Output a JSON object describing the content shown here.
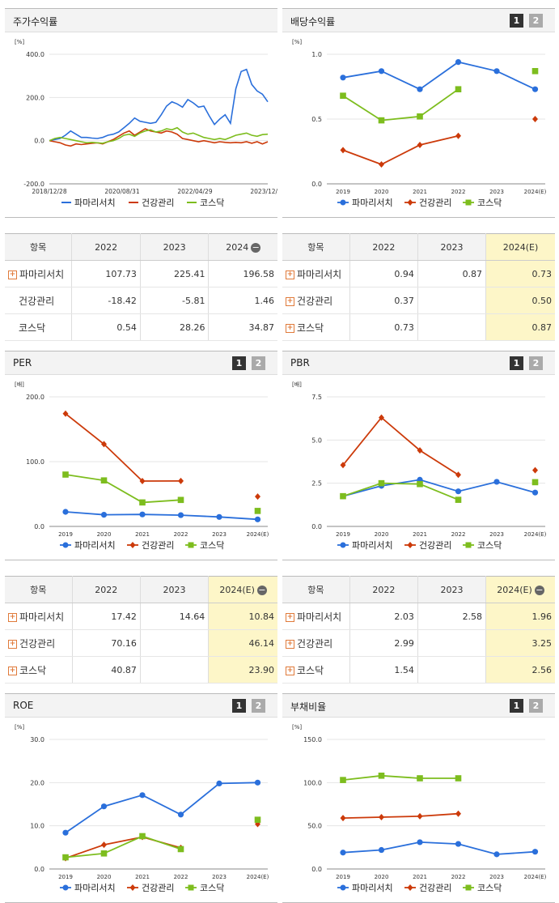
{
  "colors": {
    "s1": "#2a6fdb",
    "s2": "#cc3a0a",
    "s3": "#7dbd1e"
  },
  "pager": {
    "p1": "1",
    "p2": "2"
  },
  "top": {
    "btn_right_text": "1"
  },
  "chart_data": [
    {
      "id": "stock",
      "type": "line",
      "title": "주가수익률",
      "unit": "[%]",
      "ylim": [
        -200,
        400
      ],
      "yticks": [
        "400.0",
        "200.0",
        "0.0",
        "-200.0"
      ],
      "xticks": [
        "2018/12/28",
        "2020/08/31",
        "2022/04/29",
        "2023/12/28"
      ],
      "series": [
        {
          "name": "파마리서치",
          "values": [
            0,
            5,
            10,
            25,
            45,
            30,
            15,
            15,
            12,
            10,
            15,
            25,
            30,
            40,
            60,
            80,
            105,
            90,
            85,
            80,
            85,
            120,
            160,
            180,
            170,
            155,
            190,
            175,
            155,
            160,
            115,
            75,
            100,
            120,
            80,
            240,
            320,
            330,
            260,
            230,
            215,
            180
          ]
        },
        {
          "name": "건강관리",
          "values": [
            0,
            -5,
            -10,
            -20,
            -25,
            -15,
            -18,
            -15,
            -12,
            -10,
            -15,
            -5,
            5,
            20,
            35,
            45,
            25,
            40,
            55,
            45,
            40,
            35,
            45,
            40,
            30,
            10,
            5,
            0,
            -5,
            0,
            -5,
            -10,
            -5,
            -8,
            -10,
            -8,
            -10,
            -5,
            -12,
            -5,
            -15,
            -5
          ]
        },
        {
          "name": "코스닥",
          "values": [
            0,
            10,
            15,
            10,
            5,
            0,
            -5,
            -10,
            -8,
            -10,
            -12,
            -5,
            0,
            10,
            25,
            30,
            20,
            35,
            45,
            50,
            40,
            45,
            55,
            50,
            60,
            40,
            30,
            35,
            25,
            15,
            10,
            5,
            10,
            5,
            15,
            25,
            30,
            35,
            25,
            20,
            28,
            30
          ]
        }
      ]
    },
    {
      "id": "dividend",
      "type": "line",
      "title": "배당수익률",
      "unit": "[%]",
      "ylim": [
        0,
        1
      ],
      "yticks": [
        "1.0",
        "0.5",
        "0.0"
      ],
      "categories": [
        "2019",
        "2020",
        "2021",
        "2022",
        "2023",
        "2024(E)"
      ],
      "series": [
        {
          "name": "파마리서치",
          "values": [
            0.82,
            0.87,
            0.73,
            0.94,
            0.87,
            0.73
          ]
        },
        {
          "name": "건강관리",
          "values": [
            0.26,
            0.15,
            0.3,
            0.37,
            null,
            0.5
          ]
        },
        {
          "name": "코스닥",
          "values": [
            0.68,
            0.49,
            0.52,
            0.73,
            null,
            0.87
          ]
        }
      ]
    },
    {
      "id": "per",
      "type": "line",
      "title": "PER",
      "unit": "[배]",
      "ylim": [
        0,
        200
      ],
      "yticks": [
        "200.0",
        "100.0",
        "0.0"
      ],
      "categories": [
        "2019",
        "2020",
        "2021",
        "2022",
        "2023",
        "2024(E)"
      ],
      "series": [
        {
          "name": "파마리서치",
          "values": [
            22.5,
            18.0,
            18.5,
            17.42,
            14.64,
            10.84
          ]
        },
        {
          "name": "건강관리",
          "values": [
            174,
            127,
            70,
            70.16,
            null,
            46.14
          ]
        },
        {
          "name": "코스닥",
          "values": [
            80,
            71,
            37,
            40.87,
            null,
            23.9
          ]
        }
      ]
    },
    {
      "id": "pbr",
      "type": "line",
      "title": "PBR",
      "unit": "[배]",
      "ylim": [
        0,
        7.5
      ],
      "yticks": [
        "7.5",
        "5.0",
        "2.5",
        "0.0"
      ],
      "categories": [
        "2019",
        "2020",
        "2021",
        "2022",
        "2023",
        "2024(E)"
      ],
      "series": [
        {
          "name": "파마리서치",
          "values": [
            1.75,
            2.35,
            2.7,
            2.03,
            2.58,
            1.96
          ]
        },
        {
          "name": "건강관리",
          "values": [
            3.55,
            6.3,
            4.4,
            2.99,
            null,
            3.25
          ]
        },
        {
          "name": "코스닥",
          "values": [
            1.75,
            2.5,
            2.45,
            1.54,
            null,
            2.56
          ]
        }
      ]
    },
    {
      "id": "roe",
      "type": "line",
      "title": "ROE",
      "unit": "[%]",
      "ylim": [
        0,
        30
      ],
      "yticks": [
        "30.0",
        "20.0",
        "10.0",
        "0.0"
      ],
      "categories": [
        "2019",
        "2020",
        "2021",
        "2022",
        "2023",
        "2024(E)"
      ],
      "series": [
        {
          "name": "파마리서치",
          "values": [
            8.4,
            14.5,
            17.1,
            12.6,
            19.8,
            20.0
          ]
        },
        {
          "name": "건강관리",
          "values": [
            2.5,
            5.6,
            7.4,
            4.9,
            null,
            10.4
          ]
        },
        {
          "name": "코스닥",
          "values": [
            2.7,
            3.6,
            7.6,
            4.6,
            null,
            11.4
          ]
        }
      ]
    },
    {
      "id": "debt",
      "type": "line",
      "title": "부채비율",
      "unit": "[%]",
      "ylim": [
        0,
        150
      ],
      "yticks": [
        "150.0",
        "100.0",
        "50.0",
        "0.0"
      ],
      "categories": [
        "2019",
        "2020",
        "2021",
        "2022",
        "2023",
        "2024(E)"
      ],
      "series": [
        {
          "name": "파마리서치",
          "values": [
            19,
            22,
            31,
            29,
            17,
            20
          ]
        },
        {
          "name": "건강관리",
          "values": [
            59,
            60,
            61,
            64,
            null,
            null
          ]
        },
        {
          "name": "코스닥",
          "values": [
            103,
            108,
            105,
            105,
            null,
            null
          ]
        }
      ]
    }
  ],
  "tables": {
    "stock": {
      "head": [
        "항목",
        "2022",
        "2023",
        "2024"
      ],
      "rows": [
        {
          "label": "파마리서치",
          "plus": true,
          "v": [
            "107.73",
            "225.41",
            "196.58"
          ]
        },
        {
          "label": "건강관리",
          "plus": false,
          "v": [
            "-18.42",
            "-5.81",
            "1.46"
          ]
        },
        {
          "label": "코스닥",
          "plus": false,
          "v": [
            "0.54",
            "28.26",
            "34.87"
          ]
        }
      ]
    },
    "dividend": {
      "head": [
        "항목",
        "2022",
        "2023",
        "2024(E)"
      ],
      "rows": [
        {
          "label": "파마리서치",
          "plus": true,
          "v": [
            "0.94",
            "0.87",
            "0.73"
          ]
        },
        {
          "label": "건강관리",
          "plus": true,
          "v": [
            "0.37",
            "",
            "0.50"
          ]
        },
        {
          "label": "코스닥",
          "plus": true,
          "v": [
            "0.73",
            "",
            "0.87"
          ]
        }
      ]
    },
    "per": {
      "head": [
        "항목",
        "2022",
        "2023",
        "2024(E)"
      ],
      "rows": [
        {
          "label": "파마리서치",
          "plus": true,
          "v": [
            "17.42",
            "14.64",
            "10.84"
          ]
        },
        {
          "label": "건강관리",
          "plus": true,
          "v": [
            "70.16",
            "",
            "46.14"
          ]
        },
        {
          "label": "코스닥",
          "plus": true,
          "v": [
            "40.87",
            "",
            "23.90"
          ]
        }
      ]
    },
    "pbr": {
      "head": [
        "항목",
        "2022",
        "2023",
        "2024(E)"
      ],
      "rows": [
        {
          "label": "파마리서치",
          "plus": true,
          "v": [
            "2.03",
            "2.58",
            "1.96"
          ]
        },
        {
          "label": "건강관리",
          "plus": true,
          "v": [
            "2.99",
            "",
            "3.25"
          ]
        },
        {
          "label": "코스닥",
          "plus": true,
          "v": [
            "1.54",
            "",
            "2.56"
          ]
        }
      ]
    }
  }
}
